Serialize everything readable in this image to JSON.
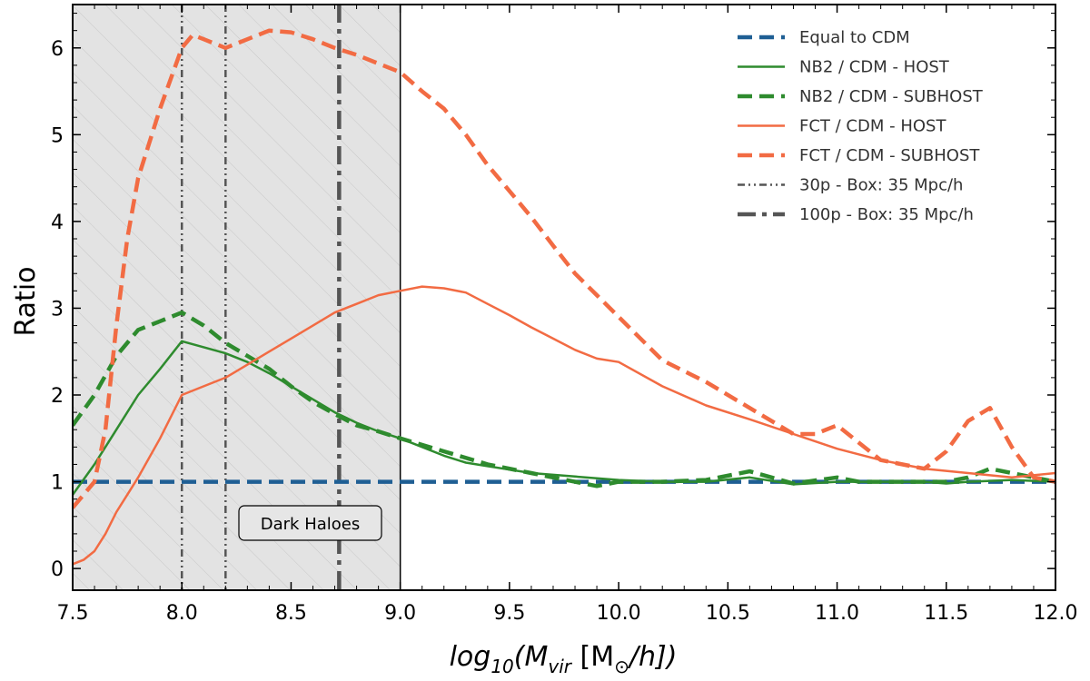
{
  "chart_data": {
    "type": "line",
    "title": "",
    "xlabel": "log10(Mvir [M☉/h])",
    "xlabel_parts": {
      "base": "log",
      "base_sub": "10",
      "open": "(M",
      "mvir_sub": "vir",
      "bracket_open": " [M",
      "sun_sub": "⊙",
      "close": "/h])"
    },
    "ylabel": "Ratio",
    "xlim": [
      7.5,
      12.0
    ],
    "ylim": [
      -0.25,
      6.5
    ],
    "xticks": [
      7.5,
      8.0,
      8.5,
      9.0,
      9.5,
      10.0,
      10.5,
      11.0,
      11.5,
      12.0
    ],
    "xtick_labels": [
      "7.5",
      "8.0",
      "8.5",
      "9.0",
      "9.5",
      "10.0",
      "10.5",
      "11.0",
      "11.5",
      "12.0"
    ],
    "yticks": [
      0,
      1,
      2,
      3,
      4,
      5,
      6
    ],
    "ytick_labels": [
      "0",
      "1",
      "2",
      "3",
      "4",
      "5",
      "6"
    ],
    "shaded_region": {
      "x": [
        7.5,
        9.0
      ],
      "label": "Dark Haloes",
      "color": "#e3e3e3"
    },
    "series": [
      {
        "name": "Equal to CDM",
        "color": "#1f5f94",
        "style": "dashed",
        "width": "thick",
        "points": [
          [
            7.5,
            1.0
          ],
          [
            12.0,
            1.0
          ]
        ]
      },
      {
        "name": "NB2 / CDM - HOST",
        "color": "#2e8b2e",
        "style": "solid",
        "width": "thin",
        "points": [
          [
            7.5,
            0.85
          ],
          [
            7.6,
            1.2
          ],
          [
            7.7,
            1.6
          ],
          [
            7.8,
            2.0
          ],
          [
            7.9,
            2.3
          ],
          [
            8.0,
            2.62
          ],
          [
            8.1,
            2.55
          ],
          [
            8.2,
            2.48
          ],
          [
            8.3,
            2.38
          ],
          [
            8.4,
            2.25
          ],
          [
            8.5,
            2.1
          ],
          [
            8.6,
            1.95
          ],
          [
            8.7,
            1.8
          ],
          [
            8.8,
            1.68
          ],
          [
            8.9,
            1.58
          ],
          [
            9.0,
            1.5
          ],
          [
            9.1,
            1.4
          ],
          [
            9.2,
            1.3
          ],
          [
            9.3,
            1.22
          ],
          [
            9.4,
            1.18
          ],
          [
            9.5,
            1.14
          ],
          [
            9.6,
            1.1
          ],
          [
            9.7,
            1.08
          ],
          [
            9.8,
            1.06
          ],
          [
            9.9,
            1.04
          ],
          [
            10.0,
            1.02
          ],
          [
            10.2,
            1.0
          ],
          [
            10.4,
            1.0
          ],
          [
            10.6,
            1.05
          ],
          [
            10.8,
            0.97
          ],
          [
            11.0,
            1.0
          ],
          [
            11.2,
            1.0
          ],
          [
            11.4,
            1.0
          ],
          [
            11.5,
            0.98
          ],
          [
            11.6,
            1.0
          ],
          [
            11.8,
            1.02
          ],
          [
            12.0,
            1.0
          ]
        ]
      },
      {
        "name": "NB2 / CDM - SUBHOST",
        "color": "#2e8b2e",
        "style": "dashed",
        "width": "thick",
        "points": [
          [
            7.5,
            1.65
          ],
          [
            7.6,
            2.0
          ],
          [
            7.7,
            2.45
          ],
          [
            7.8,
            2.75
          ],
          [
            7.9,
            2.85
          ],
          [
            8.0,
            2.95
          ],
          [
            8.1,
            2.8
          ],
          [
            8.2,
            2.6
          ],
          [
            8.3,
            2.45
          ],
          [
            8.4,
            2.3
          ],
          [
            8.5,
            2.1
          ],
          [
            8.6,
            1.92
          ],
          [
            8.7,
            1.78
          ],
          [
            8.8,
            1.65
          ],
          [
            8.9,
            1.58
          ],
          [
            9.0,
            1.5
          ],
          [
            9.2,
            1.35
          ],
          [
            9.4,
            1.2
          ],
          [
            9.6,
            1.1
          ],
          [
            9.8,
            1.0
          ],
          [
            9.9,
            0.95
          ],
          [
            10.0,
            1.0
          ],
          [
            10.2,
            1.0
          ],
          [
            10.4,
            1.02
          ],
          [
            10.6,
            1.12
          ],
          [
            10.7,
            1.05
          ],
          [
            10.8,
            0.98
          ],
          [
            11.0,
            1.05
          ],
          [
            11.1,
            1.0
          ],
          [
            11.3,
            1.0
          ],
          [
            11.5,
            1.0
          ],
          [
            11.6,
            1.05
          ],
          [
            11.7,
            1.15
          ],
          [
            11.8,
            1.1
          ],
          [
            11.9,
            1.05
          ],
          [
            12.0,
            1.0
          ]
        ]
      },
      {
        "name": "FCT / CDM - HOST",
        "color": "#f26b43",
        "style": "solid",
        "width": "thin",
        "points": [
          [
            7.5,
            0.05
          ],
          [
            7.55,
            0.1
          ],
          [
            7.6,
            0.2
          ],
          [
            7.65,
            0.4
          ],
          [
            7.7,
            0.65
          ],
          [
            7.75,
            0.85
          ],
          [
            7.8,
            1.05
          ],
          [
            7.9,
            1.5
          ],
          [
            8.0,
            2.0
          ],
          [
            8.1,
            2.1
          ],
          [
            8.2,
            2.2
          ],
          [
            8.3,
            2.35
          ],
          [
            8.4,
            2.5
          ],
          [
            8.5,
            2.65
          ],
          [
            8.6,
            2.8
          ],
          [
            8.7,
            2.95
          ],
          [
            8.8,
            3.05
          ],
          [
            8.9,
            3.15
          ],
          [
            9.0,
            3.2
          ],
          [
            9.1,
            3.25
          ],
          [
            9.2,
            3.23
          ],
          [
            9.3,
            3.18
          ],
          [
            9.4,
            3.05
          ],
          [
            9.5,
            2.92
          ],
          [
            9.6,
            2.78
          ],
          [
            9.7,
            2.65
          ],
          [
            9.8,
            2.52
          ],
          [
            9.9,
            2.42
          ],
          [
            10.0,
            2.38
          ],
          [
            10.2,
            2.1
          ],
          [
            10.4,
            1.88
          ],
          [
            10.6,
            1.72
          ],
          [
            10.8,
            1.55
          ],
          [
            11.0,
            1.38
          ],
          [
            11.2,
            1.25
          ],
          [
            11.4,
            1.15
          ],
          [
            11.6,
            1.1
          ],
          [
            11.8,
            1.05
          ],
          [
            12.0,
            1.1
          ]
        ]
      },
      {
        "name": "FCT / CDM - SUBHOST",
        "color": "#f26b43",
        "style": "dashed",
        "width": "thick",
        "points": [
          [
            7.5,
            0.7
          ],
          [
            7.6,
            1.0
          ],
          [
            7.65,
            1.6
          ],
          [
            7.7,
            2.8
          ],
          [
            7.75,
            3.8
          ],
          [
            7.8,
            4.5
          ],
          [
            7.9,
            5.3
          ],
          [
            8.0,
            6.0
          ],
          [
            8.05,
            6.15
          ],
          [
            8.1,
            6.1
          ],
          [
            8.2,
            6.0
          ],
          [
            8.3,
            6.1
          ],
          [
            8.4,
            6.2
          ],
          [
            8.5,
            6.18
          ],
          [
            8.6,
            6.1
          ],
          [
            8.7,
            6.0
          ],
          [
            8.8,
            5.92
          ],
          [
            8.9,
            5.82
          ],
          [
            9.0,
            5.72
          ],
          [
            9.1,
            5.5
          ],
          [
            9.2,
            5.3
          ],
          [
            9.3,
            5.0
          ],
          [
            9.4,
            4.65
          ],
          [
            9.5,
            4.35
          ],
          [
            9.6,
            4.05
          ],
          [
            9.7,
            3.72
          ],
          [
            9.8,
            3.4
          ],
          [
            9.9,
            3.15
          ],
          [
            10.0,
            2.9
          ],
          [
            10.2,
            2.4
          ],
          [
            10.4,
            2.15
          ],
          [
            10.6,
            1.85
          ],
          [
            10.8,
            1.55
          ],
          [
            10.9,
            1.55
          ],
          [
            11.0,
            1.65
          ],
          [
            11.1,
            1.45
          ],
          [
            11.2,
            1.25
          ],
          [
            11.4,
            1.15
          ],
          [
            11.5,
            1.35
          ],
          [
            11.6,
            1.7
          ],
          [
            11.7,
            1.85
          ],
          [
            11.8,
            1.4
          ],
          [
            11.9,
            1.05
          ],
          [
            12.0,
            1.0
          ]
        ]
      }
    ],
    "vlines": [
      {
        "name": "30p - Box: 35 Mpc/h",
        "x": 8.0,
        "color": "#555555",
        "style": "dashdotdot",
        "width": "thin"
      },
      {
        "name": "30p - Box: 35 Mpc/h",
        "x": 8.2,
        "color": "#555555",
        "style": "dashdotdot",
        "width": "thin"
      },
      {
        "name": "100p - Box: 35 Mpc/h",
        "x": 8.72,
        "color": "#555555",
        "style": "dashdot",
        "width": "thick"
      }
    ],
    "legend": {
      "placement": "top-right",
      "entries": [
        {
          "label": "Equal to CDM",
          "color": "#1f5f94",
          "style": "dashed",
          "width": "thick"
        },
        {
          "label": "NB2 / CDM - HOST",
          "color": "#2e8b2e",
          "style": "solid",
          "width": "thin"
        },
        {
          "label": "NB2 / CDM - SUBHOST",
          "color": "#2e8b2e",
          "style": "dashed",
          "width": "thick"
        },
        {
          "label": "FCT / CDM - HOST",
          "color": "#f26b43",
          "style": "solid",
          "width": "thin"
        },
        {
          "label": "FCT / CDM - SUBHOST",
          "color": "#f26b43",
          "style": "dashed",
          "width": "thick"
        },
        {
          "label": "30p - Box: 35 Mpc/h",
          "color": "#555555",
          "style": "dashdotdot",
          "width": "thin"
        },
        {
          "label": "100p - Box: 35 Mpc/h",
          "color": "#555555",
          "style": "dashdot",
          "width": "thick"
        }
      ]
    }
  }
}
